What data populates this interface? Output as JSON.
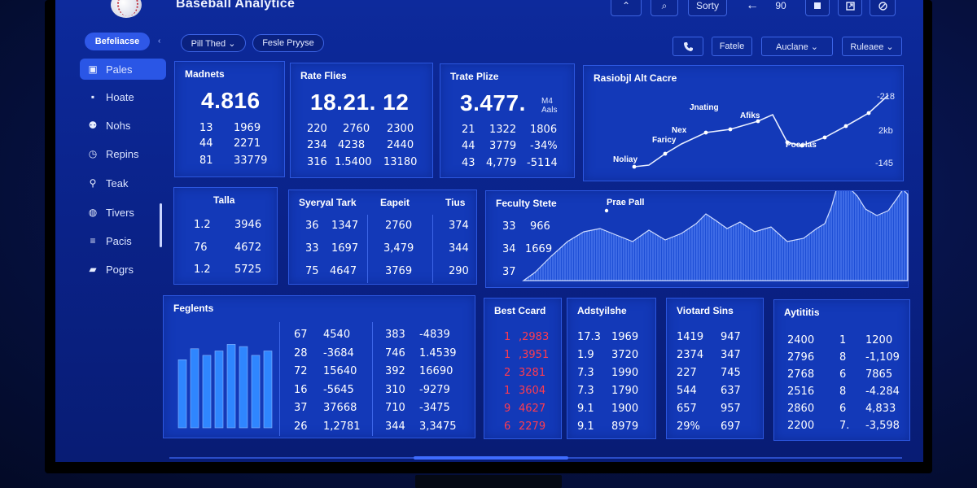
{
  "app": {
    "title": "Baseball Analytice"
  },
  "topbar": {
    "up_label": "⌃",
    "search_label": "⌕",
    "sort_label": "Sorty",
    "back_label": "←",
    "count_label": "90",
    "icons": [
      "square-icon",
      "export-icon",
      "settings-icon"
    ]
  },
  "sidebar": {
    "head_label": "Befeliacse",
    "collapse_label": "‹",
    "items": [
      {
        "label": "Pales",
        "icon": "chart-icon"
      },
      {
        "label": "Hoate",
        "icon": "home-icon"
      },
      {
        "label": "Nohs",
        "icon": "users-icon"
      },
      {
        "label": "Repins",
        "icon": "clock-icon"
      },
      {
        "label": "Teak",
        "icon": "wrench-icon"
      },
      {
        "label": "Tivers",
        "icon": "database-icon"
      },
      {
        "label": "Pacis",
        "icon": "layers-icon"
      },
      {
        "label": "Pogrs",
        "icon": "folder-icon"
      }
    ]
  },
  "filters": {
    "chip1": "Pill Thed ⌄",
    "chip2": "Fesle Pryyse",
    "phone": "📞",
    "btn1": "Fatele",
    "btn2": "Auclane ⌄",
    "btn3": "Ruleaee ⌄"
  },
  "panel_madnets": {
    "title": "Madnets",
    "big": "4.816",
    "rows": [
      [
        "13",
        "1969"
      ],
      [
        "44",
        "2271"
      ],
      [
        "81",
        "33779"
      ]
    ]
  },
  "panel_rate": {
    "title": "Rate Flies",
    "big": "18.21.  12",
    "rows": [
      [
        "220",
        "2760",
        "2300"
      ],
      [
        "234",
        "4238",
        "2440"
      ],
      [
        "316",
        "1.5400",
        "13180"
      ]
    ]
  },
  "panel_trate": {
    "title": "Trate Plize",
    "big": "3.477.",
    "sub": "M4\nAals",
    "rows": [
      [
        "21",
        "1322",
        "1806"
      ],
      [
        "44",
        "3779",
        "-34%"
      ],
      [
        "43",
        "4,779",
        "-5114"
      ]
    ]
  },
  "line_chart": {
    "title": "Rasiobjl Alt Cacre",
    "labels": {
      "a": "Jnating",
      "b": "Afiks",
      "c": "Nex",
      "d": "Faricy",
      "e": "Noliay",
      "f": "Pocelas"
    },
    "ticks": [
      "-218",
      "2kb",
      "-145"
    ]
  },
  "panel_talla": {
    "title": "Talla",
    "rows": [
      [
        "1.2",
        "3946"
      ],
      [
        "76",
        "4672"
      ],
      [
        "1.2",
        "5725"
      ]
    ]
  },
  "panel_synerval": {
    "headers": [
      "Syeryal Tark",
      "Eapeit",
      "Tius"
    ],
    "rows": [
      [
        "36",
        "1347",
        "2760",
        "374"
      ],
      [
        "33",
        "1697",
        "3,479",
        "344"
      ],
      [
        "75",
        "4647",
        "3769",
        "290"
      ]
    ]
  },
  "area_chart": {
    "title": "Feculty Stete",
    "label": "Prae Pall",
    "rows": [
      [
        "33",
        "966"
      ],
      [
        "34",
        "1669"
      ],
      [
        "37",
        ""
      ]
    ]
  },
  "panel_feglents": {
    "title": "Feglents",
    "bar_values": [
      62,
      72,
      66,
      70,
      76,
      74,
      66,
      70
    ],
    "cols": [
      [
        [
          "67",
          "4540"
        ],
        [
          "28",
          "-3684"
        ],
        [
          "72",
          "15640"
        ],
        [
          "16",
          "-5645"
        ],
        [
          "37",
          "37668"
        ],
        [
          "26",
          "1,2781"
        ]
      ],
      [
        [
          "383",
          "-4839"
        ],
        [
          "746",
          "1.4539"
        ],
        [
          "392",
          "16690"
        ],
        [
          "310",
          "-9279"
        ],
        [
          "710",
          "-3475"
        ],
        [
          "344",
          "3,3475"
        ]
      ]
    ]
  },
  "panel_bestcard": {
    "title": "Best Ccard",
    "rows": [
      [
        "1",
        ",2983"
      ],
      [
        "1",
        ",3951"
      ],
      [
        "2",
        "3281"
      ],
      [
        "1",
        "3604"
      ],
      [
        "9",
        "4627"
      ],
      [
        "6",
        "2279"
      ]
    ]
  },
  "panel_adstylishe": {
    "title": "Adstyilshe",
    "rows": [
      [
        "17.3",
        "1969"
      ],
      [
        "1.9",
        "3720"
      ],
      [
        "7.3",
        "1990"
      ],
      [
        "7.3",
        "1790"
      ],
      [
        "9.1",
        "1900"
      ],
      [
        "9.1",
        "8979"
      ]
    ]
  },
  "panel_viorted": {
    "title": "Viotard Sins",
    "rows": [
      [
        "1419",
        "947"
      ],
      [
        "2374",
        "347"
      ],
      [
        "227",
        "745"
      ],
      [
        "544",
        "637"
      ],
      [
        "657",
        "957"
      ],
      [
        "29%",
        "697"
      ]
    ]
  },
  "panel_aytitis": {
    "title": "Aytititis",
    "rows": [
      [
        "2400",
        "1",
        "1200"
      ],
      [
        "2796",
        "8",
        "-1,109"
      ],
      [
        "2768",
        "6",
        "7865"
      ],
      [
        "2516",
        "8",
        "-4.284"
      ],
      [
        "2860",
        "6",
        "4,833"
      ],
      [
        "2200",
        "7.",
        "-3,598"
      ]
    ]
  },
  "colors": {
    "accent": "#2f58e8",
    "panel": "#1339b8",
    "negative": "#ff3b4e"
  }
}
